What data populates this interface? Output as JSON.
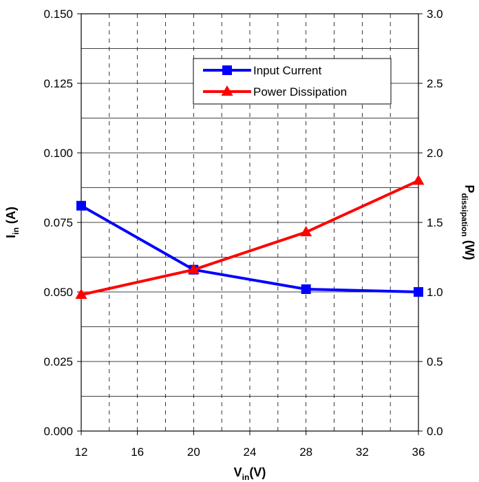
{
  "chart_data": {
    "type": "line",
    "x": [
      12,
      20,
      28,
      36
    ],
    "xlim": [
      12,
      36
    ],
    "x_ticks": [
      12,
      16,
      20,
      24,
      28,
      32,
      36
    ],
    "x_tick_labels": [
      "12",
      "16",
      "20",
      "24",
      "28",
      "32",
      "36"
    ],
    "xlabel": {
      "main": "V",
      "sub": "in",
      "tail": "(V)"
    },
    "ylim_left": [
      0,
      0.15
    ],
    "y_ticks_left": [
      0,
      0.025,
      0.05,
      0.075,
      0.1,
      0.125,
      0.15
    ],
    "y_tick_labels_left": [
      "0.000",
      "0.025",
      "0.050",
      "0.075",
      "0.100",
      "0.125",
      "0.150"
    ],
    "ylabel_left": {
      "main": "I",
      "sub": "in",
      "tail": " (A)"
    },
    "ylim_right": [
      0,
      3.0
    ],
    "y_ticks_right": [
      0,
      0.5,
      1.0,
      1.5,
      2.0,
      2.5,
      3.0
    ],
    "y_tick_labels_right": [
      "0.0",
      "0.5",
      "1.0",
      "1.5",
      "2.0",
      "2.5",
      "3.0"
    ],
    "ylabel_right": {
      "main": "P",
      "sub": "dissipation",
      "tail": " (W)"
    },
    "grid": {
      "x_dashed": true,
      "y_solid_step": 0.0125
    },
    "legend_position": "top-right",
    "series": [
      {
        "name": "Input Current",
        "axis": "left",
        "marker": "square",
        "color": "#0000ff",
        "values": [
          0.081,
          0.058,
          0.051,
          0.05
        ]
      },
      {
        "name": "Power Dissipation",
        "axis": "right",
        "marker": "triangle",
        "color": "#ff0000",
        "values": [
          0.98,
          1.16,
          1.43,
          1.8
        ]
      }
    ]
  }
}
